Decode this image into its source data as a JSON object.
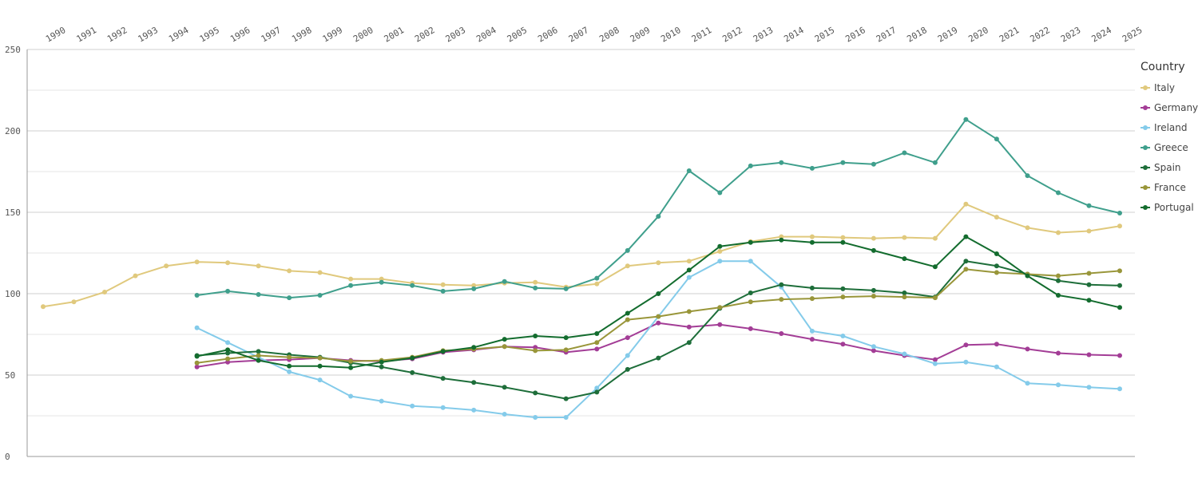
{
  "chart_data": {
    "type": "line",
    "x": [
      1990,
      1991,
      1992,
      1993,
      1994,
      1995,
      1996,
      1997,
      1998,
      1999,
      2000,
      2001,
      2002,
      2003,
      2004,
      2005,
      2006,
      2007,
      2008,
      2009,
      2010,
      2011,
      2012,
      2013,
      2014,
      2015,
      2016,
      2017,
      2018,
      2019,
      2020,
      2021,
      2022,
      2023,
      2024,
      2025
    ],
    "x_tick_labels": [
      "1990",
      "1991",
      "1992",
      "1993",
      "1994",
      "1995",
      "1996",
      "1997",
      "1998",
      "1999",
      "2000",
      "2001",
      "2002",
      "2003",
      "2004",
      "2005",
      "2006",
      "2007",
      "2008",
      "2009",
      "2010",
      "2011",
      "2012",
      "2013",
      "2014",
      "2015",
      "2016",
      "2017",
      "2018",
      "2019",
      "2020",
      "2021",
      "2022",
      "2023",
      "2024",
      "2025"
    ],
    "y_ticks": [
      0,
      50,
      100,
      150,
      200,
      250
    ],
    "y_tick_labels": [
      "0",
      "50",
      "100",
      "150",
      "200",
      "250"
    ],
    "ylim": [
      0,
      250
    ],
    "grid": true,
    "legend": {
      "title": "Country",
      "position": "right"
    },
    "series": [
      {
        "name": "Italy",
        "color": "#e0c97d",
        "values": [
          92,
          95,
          101,
          111,
          117,
          119.5,
          119,
          117,
          114,
          113,
          109,
          109,
          106.5,
          105.5,
          105,
          106.5,
          107,
          104,
          106,
          117,
          119,
          120,
          126,
          132,
          135,
          135,
          134.5,
          134,
          134.5,
          134,
          155,
          147,
          140.5,
          137.5,
          138.5,
          141.5
        ]
      },
      {
        "name": "Germany",
        "color": "#a33d96",
        "values": [
          null,
          null,
          null,
          null,
          null,
          55,
          58,
          59,
          59.5,
          60.5,
          59,
          58.5,
          60,
          64,
          65.5,
          67.5,
          67,
          64,
          66,
          73,
          82,
          79.5,
          81,
          78.5,
          75.5,
          72,
          69,
          65,
          62,
          59.5,
          68.5,
          69,
          66,
          63.5,
          62.5,
          62
        ]
      },
      {
        "name": "Ireland",
        "color": "#84cbea",
        "values": [
          null,
          null,
          null,
          null,
          null,
          79,
          70,
          61,
          52,
          47,
          37,
          34,
          31,
          30,
          28.5,
          26,
          24,
          24,
          42,
          62,
          86,
          110,
          120,
          120,
          104,
          77,
          74,
          67.5,
          63,
          57,
          58,
          55,
          45,
          44,
          42.5,
          41.5
        ]
      },
      {
        "name": "Greece",
        "color": "#3f9f8c",
        "values": [
          null,
          null,
          null,
          null,
          null,
          99,
          101.5,
          99.5,
          97.5,
          99,
          105,
          107,
          105,
          101.5,
          103,
          107.5,
          103.5,
          103,
          109.5,
          126.5,
          147.5,
          175.5,
          162,
          178.5,
          180.5,
          177,
          180.5,
          179.5,
          186.5,
          180.5,
          207,
          195,
          172.5,
          162,
          154,
          149.5
        ]
      },
      {
        "name": "Spain",
        "color": "#1e6e3a",
        "values": [
          null,
          null,
          null,
          null,
          null,
          62,
          63.5,
          64.5,
          62.5,
          61,
          57.5,
          55,
          51.5,
          48,
          45.5,
          42.5,
          39,
          35.5,
          39.5,
          53.5,
          60.5,
          70,
          91,
          100.5,
          105.5,
          103.5,
          103,
          102,
          100.5,
          98,
          120,
          117,
          112,
          108,
          105.5,
          105
        ]
      },
      {
        "name": "France",
        "color": "#99963a",
        "values": [
          null,
          null,
          null,
          null,
          null,
          57.5,
          60,
          62,
          61,
          60.5,
          58.5,
          59,
          61,
          65,
          66,
          67.5,
          65,
          65.5,
          70,
          84,
          86,
          89,
          91.5,
          95,
          96.5,
          97,
          98,
          98.5,
          98,
          97.5,
          115,
          113,
          112,
          111,
          112.5,
          114
        ]
      },
      {
        "name": "Portugal",
        "color": "#136c2e",
        "values": [
          null,
          null,
          null,
          null,
          null,
          61.5,
          65.5,
          59,
          55.5,
          55.5,
          54.5,
          58,
          60.5,
          64.5,
          67,
          72,
          74,
          73,
          75.5,
          88,
          100,
          114.5,
          129,
          131.5,
          133,
          131.5,
          131.5,
          126.5,
          121.5,
          116.5,
          135,
          124.5,
          111,
          99,
          96,
          91.5
        ]
      }
    ]
  }
}
